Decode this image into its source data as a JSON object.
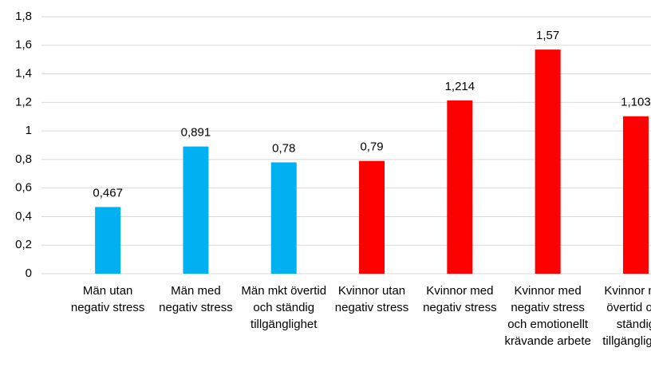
{
  "chart_data": {
    "type": "bar",
    "categories": [
      "Män utan negativ stress",
      "Män med negativ stress",
      "Män mkt övertid och ständig tillgänglighet",
      "Kvinnor utan negativ stress",
      "Kvinnor med negativ stress",
      "Kvinnor med negativ stress och emotionellt krävande arbete",
      "Kvinnor mkt övertid och ständig tillgänglighet"
    ],
    "values": [
      0.467,
      0.891,
      0.78,
      0.79,
      1.214,
      1.57,
      1.103
    ],
    "value_labels": [
      "0,467",
      "0,891",
      "0,78",
      "0,79",
      "1,214",
      "1,57",
      "1,103"
    ],
    "colors": [
      "#00b0f0",
      "#00b0f0",
      "#00b0f0",
      "#ff0000",
      "#ff0000",
      "#ff0000",
      "#ff0000"
    ],
    "ylim": [
      0,
      1.8
    ],
    "yticks": [
      0,
      {
        "value": 0.2,
        "label": "0,2"
      },
      {
        "value": 0.4,
        "label": "0,4"
      },
      {
        "value": 0.6,
        "label": "0,6"
      },
      {
        "value": 0.8,
        "label": "0,8"
      },
      1,
      {
        "value": 1.2,
        "label": "1,2"
      },
      {
        "value": 1.4,
        "label": "1,4"
      },
      {
        "value": 1.6,
        "label": "1,6"
      },
      {
        "value": 1.8,
        "label": "1,8"
      }
    ],
    "grid": true
  }
}
